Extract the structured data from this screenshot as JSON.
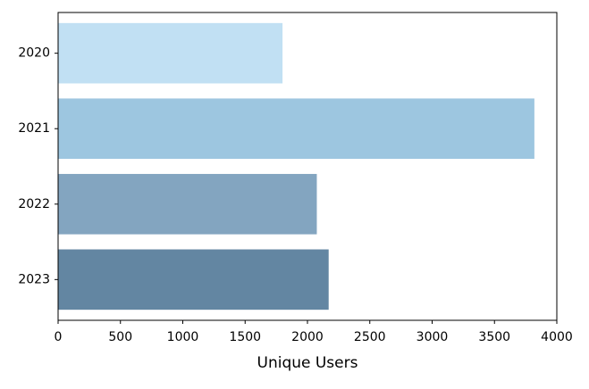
{
  "chart_data": {
    "type": "bar",
    "orientation": "horizontal",
    "title": "",
    "xlabel": "Unique Users",
    "ylabel": "",
    "categories": [
      "2020",
      "2021",
      "2022",
      "2023"
    ],
    "values": [
      1800,
      3820,
      2075,
      2170
    ],
    "colors": [
      "#c1e0f3",
      "#9dc6e0",
      "#83a5c0",
      "#6386a2"
    ],
    "xlim": [
      0,
      4000
    ],
    "xticks": [
      0,
      500,
      1000,
      1500,
      2000,
      2500,
      3000,
      3500,
      4000
    ],
    "xtick_labels": [
      "0",
      "500",
      "1000",
      "1500",
      "2000",
      "2500",
      "3000",
      "3500",
      "4000"
    ],
    "grid": false,
    "legend": "none"
  }
}
